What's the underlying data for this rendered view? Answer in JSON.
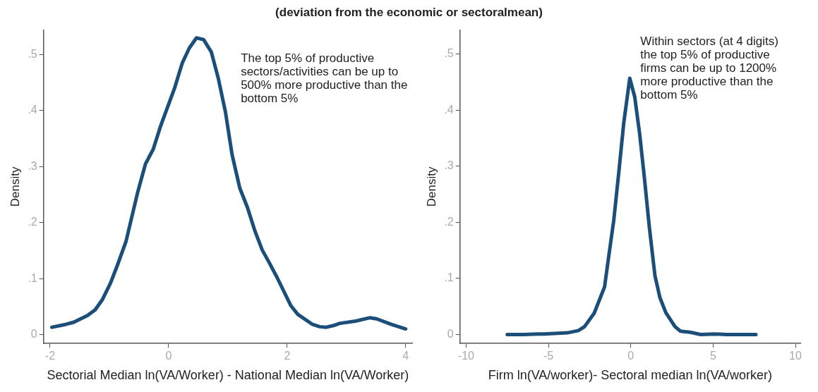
{
  "chart_data": [
    {
      "type": "line",
      "title": "(deviation from the economic or sectoralmean)",
      "xlabel": "Sectorial Median ln(VA/Worker) - National Median ln(VA/Worker)",
      "ylabel": "Density",
      "annotations": [
        "The top 5% of productive sectors/activities can be up to 500% more productive than the bottom 5%"
      ],
      "x": [
        -1.97,
        -1.74,
        -1.6,
        -1.37,
        -1.24,
        -1.12,
        -0.98,
        -0.86,
        -0.72,
        -0.52,
        -0.39,
        -0.26,
        -0.14,
        0.1,
        0.23,
        0.35,
        0.47,
        0.59,
        0.72,
        0.84,
        0.96,
        1.07,
        1.2,
        1.33,
        1.46,
        1.58,
        1.7,
        1.83,
        2.06,
        2.18,
        2.43,
        2.55,
        2.66,
        2.78,
        2.89,
        3.15,
        3.4,
        3.51,
        3.76,
        4.0
      ],
      "series": [
        {
          "color": "#1b4f7a",
          "values": [
            0.013,
            0.018,
            0.022,
            0.034,
            0.044,
            0.062,
            0.092,
            0.125,
            0.166,
            0.255,
            0.305,
            0.331,
            0.371,
            0.44,
            0.485,
            0.512,
            0.53,
            0.527,
            0.505,
            0.457,
            0.397,
            0.322,
            0.262,
            0.227,
            0.184,
            0.151,
            0.128,
            0.102,
            0.052,
            0.036,
            0.018,
            0.014,
            0.013,
            0.016,
            0.02,
            0.024,
            0.03,
            0.028,
            0.018,
            0.01
          ]
        }
      ],
      "xlim": [
        -2.11,
        4.11
      ],
      "ylim": [
        -0.016,
        0.544
      ],
      "xticks": [
        -2,
        0,
        2,
        4
      ],
      "yticks": [
        0,
        {
          "value": 0.1,
          "label": ".1"
        },
        {
          "value": 0.2,
          "label": ".2"
        },
        {
          "value": 0.3,
          "label": ".3"
        },
        {
          "value": 0.4,
          "label": ".4"
        },
        {
          "value": 0.5,
          "label": ".5"
        }
      ],
      "marker": "none",
      "line_style": "solid",
      "legend": false
    },
    {
      "type": "line",
      "xlabel": "Firm ln(VA/worker)- Sectoral median ln(VA/worker)",
      "ylabel": "Density",
      "annotations": [
        "Within sectors (at 4 digits) the top 5% of productive firms can be up to 1200% more productive than the bottom 5%"
      ],
      "x": [
        -7.5,
        -6.53,
        -5.64,
        -5.27,
        -3.85,
        -3.18,
        -2.81,
        -2.22,
        -1.59,
        -1.32,
        -1.03,
        -0.73,
        -0.43,
        -0.06,
        0.24,
        0.54,
        0.83,
        1.13,
        1.47,
        1.77,
        2.13,
        2.69,
        3.02,
        3.61,
        4.25,
        5.07,
        5.82,
        7.6
      ],
      "series": [
        {
          "color": "#1b4f7a",
          "values": [
            0,
            0,
            0.001,
            0.001,
            0.003,
            0.007,
            0.014,
            0.038,
            0.085,
            0.143,
            0.204,
            0.288,
            0.376,
            0.457,
            0.424,
            0.358,
            0.279,
            0.191,
            0.105,
            0.066,
            0.039,
            0.014,
            0.006,
            0.004,
            0,
            0.001,
            0,
            0
          ]
        }
      ],
      "xlim": [
        -10.37,
        10.3
      ],
      "ylim": [
        -0.016,
        0.543
      ],
      "xticks": [
        -10,
        -5,
        0,
        5,
        10
      ],
      "yticks": [
        0,
        {
          "value": 0.1,
          "label": ".1"
        },
        {
          "value": 0.2,
          "label": ".2"
        },
        {
          "value": 0.3,
          "label": ".3"
        },
        {
          "value": 0.4,
          "label": ".4"
        },
        {
          "value": 0.5,
          "label": ".5"
        }
      ],
      "marker": "none",
      "line_style": "solid",
      "legend": false
    }
  ]
}
